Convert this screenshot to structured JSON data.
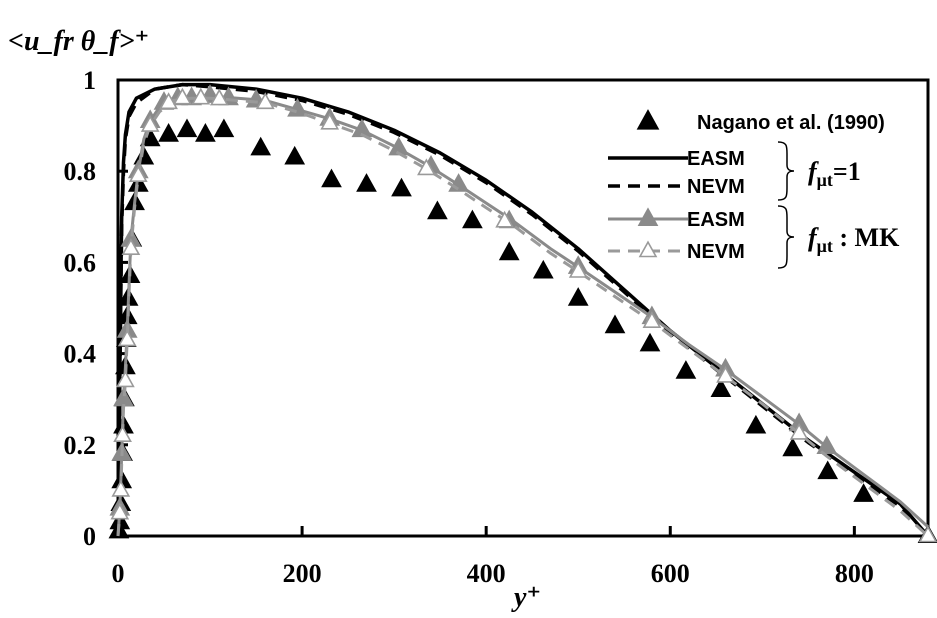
{
  "chart_data": {
    "type": "line",
    "title": "",
    "ylabel": "<u_fr θ_f>⁺",
    "xlabel": "y⁺",
    "xlim": [
      0,
      880
    ],
    "ylim": [
      0,
      1
    ],
    "grid": false,
    "legend_position": "top-right",
    "x_ticks": [
      0,
      200,
      400,
      600,
      800
    ],
    "y_ticks": [
      0,
      0.2,
      0.4,
      0.6,
      0.8,
      1
    ],
    "x_tick_labels": [
      "0",
      "200",
      "400",
      "600",
      "800"
    ],
    "y_tick_labels": [
      "0",
      "0.2",
      "0.4",
      "0.6",
      "0.8",
      "1"
    ],
    "legend_groups": [
      {
        "label_main": "f",
        "label_sub": "μt",
        "label_suffix": "=1",
        "members": [
          "EASM (fμt=1)",
          "NEVM (fμt=1)"
        ]
      },
      {
        "label_main": "f",
        "label_sub": "μt",
        "label_suffix": " : MK",
        "members": [
          "EASM (fμt: MK)",
          "NEVM (fμt: MK)"
        ]
      }
    ],
    "series": [
      {
        "name": "Nagano et al. (1990)",
        "legend_label": "Nagano et al. (1990)",
        "style": "markers",
        "marker": "filled-triangle",
        "color": "#000000",
        "points": [
          [
            1,
            0.01
          ],
          [
            2,
            0.03
          ],
          [
            3,
            0.07
          ],
          [
            4,
            0.12
          ],
          [
            5,
            0.18
          ],
          [
            6,
            0.24
          ],
          [
            7,
            0.3
          ],
          [
            8,
            0.37
          ],
          [
            9,
            0.43
          ],
          [
            10,
            0.48
          ],
          [
            11,
            0.52
          ],
          [
            13,
            0.57
          ],
          [
            15,
            0.65
          ],
          [
            18,
            0.73
          ],
          [
            22,
            0.77
          ],
          [
            28,
            0.83
          ],
          [
            35,
            0.87
          ],
          [
            55,
            0.88
          ],
          [
            75,
            0.89
          ],
          [
            95,
            0.88
          ],
          [
            115,
            0.89
          ],
          [
            155,
            0.85
          ],
          [
            192,
            0.83
          ],
          [
            232,
            0.78
          ],
          [
            270,
            0.77
          ],
          [
            308,
            0.76
          ],
          [
            347,
            0.71
          ],
          [
            385,
            0.69
          ],
          [
            425,
            0.62
          ],
          [
            462,
            0.58
          ],
          [
            500,
            0.52
          ],
          [
            540,
            0.46
          ],
          [
            578,
            0.42
          ],
          [
            617,
            0.36
          ],
          [
            655,
            0.32
          ],
          [
            693,
            0.24
          ],
          [
            733,
            0.19
          ],
          [
            771,
            0.14
          ],
          [
            810,
            0.09
          ],
          [
            880,
            0.0
          ]
        ]
      },
      {
        "name": "EASM (fμt=1)",
        "legend_label": "EASM",
        "style": "solid",
        "color": "#000000",
        "width": 3.5,
        "points": [
          [
            0,
            0
          ],
          [
            1,
            0.15
          ],
          [
            2,
            0.35
          ],
          [
            3,
            0.55
          ],
          [
            4,
            0.7
          ],
          [
            6,
            0.82
          ],
          [
            8,
            0.88
          ],
          [
            12,
            0.93
          ],
          [
            20,
            0.96
          ],
          [
            40,
            0.98
          ],
          [
            70,
            0.99
          ],
          [
            100,
            0.99
          ],
          [
            150,
            0.98
          ],
          [
            200,
            0.96
          ],
          [
            250,
            0.93
          ],
          [
            300,
            0.89
          ],
          [
            350,
            0.84
          ],
          [
            400,
            0.78
          ],
          [
            450,
            0.71
          ],
          [
            500,
            0.63
          ],
          [
            550,
            0.54
          ],
          [
            600,
            0.45
          ],
          [
            650,
            0.37
          ],
          [
            700,
            0.29
          ],
          [
            750,
            0.21
          ],
          [
            800,
            0.14
          ],
          [
            850,
            0.07
          ],
          [
            880,
            0
          ]
        ]
      },
      {
        "name": "NEVM (fμt=1)",
        "legend_label": "NEVM",
        "style": "dashed",
        "color": "#000000",
        "width": 3.5,
        "points": [
          [
            0,
            0
          ],
          [
            1,
            0.14
          ],
          [
            2,
            0.33
          ],
          [
            3,
            0.52
          ],
          [
            4,
            0.68
          ],
          [
            6,
            0.8
          ],
          [
            8,
            0.87
          ],
          [
            12,
            0.92
          ],
          [
            20,
            0.95
          ],
          [
            40,
            0.98
          ],
          [
            70,
            0.99
          ],
          [
            100,
            0.985
          ],
          [
            150,
            0.975
          ],
          [
            200,
            0.955
          ],
          [
            250,
            0.925
          ],
          [
            300,
            0.885
          ],
          [
            350,
            0.835
          ],
          [
            400,
            0.775
          ],
          [
            450,
            0.705
          ],
          [
            500,
            0.625
          ],
          [
            550,
            0.535
          ],
          [
            600,
            0.445
          ],
          [
            650,
            0.365
          ],
          [
            700,
            0.285
          ],
          [
            750,
            0.205
          ],
          [
            800,
            0.135
          ],
          [
            850,
            0.065
          ],
          [
            880,
            0
          ]
        ]
      },
      {
        "name": "EASM (fμt: MK)",
        "legend_label": "EASM",
        "style": "solid-markers",
        "marker": "filled-triangle",
        "color": "#8a8a8a",
        "width": 3,
        "points": [
          [
            0,
            0
          ],
          [
            2,
            0.06
          ],
          [
            3,
            0.12
          ],
          [
            4,
            0.18
          ],
          [
            5,
            0.24
          ],
          [
            6,
            0.3
          ],
          [
            8,
            0.37
          ],
          [
            10,
            0.45
          ],
          [
            12,
            0.55
          ],
          [
            14,
            0.65
          ],
          [
            18,
            0.73
          ],
          [
            22,
            0.8
          ],
          [
            28,
            0.87
          ],
          [
            35,
            0.91
          ],
          [
            45,
            0.94
          ],
          [
            60,
            0.96
          ],
          [
            80,
            0.96
          ],
          [
            100,
            0.965
          ],
          [
            130,
            0.96
          ],
          [
            160,
            0.955
          ],
          [
            195,
            0.935
          ],
          [
            230,
            0.915
          ],
          [
            265,
            0.89
          ],
          [
            300,
            0.855
          ],
          [
            335,
            0.815
          ],
          [
            370,
            0.77
          ],
          [
            400,
            0.73
          ],
          [
            430,
            0.69
          ],
          [
            470,
            0.63
          ],
          [
            500,
            0.59
          ],
          [
            540,
            0.535
          ],
          [
            580,
            0.48
          ],
          [
            620,
            0.42
          ],
          [
            660,
            0.365
          ],
          [
            700,
            0.305
          ],
          [
            740,
            0.245
          ],
          [
            770,
            0.195
          ],
          [
            810,
            0.135
          ],
          [
            850,
            0.075
          ],
          [
            880,
            0.02
          ]
        ],
        "marker_points": [
          [
            2,
            0.06
          ],
          [
            4,
            0.18
          ],
          [
            6,
            0.3
          ],
          [
            10,
            0.45
          ],
          [
            14,
            0.65
          ],
          [
            22,
            0.8
          ],
          [
            35,
            0.91
          ],
          [
            50,
            0.95
          ],
          [
            65,
            0.96
          ],
          [
            80,
            0.96
          ],
          [
            100,
            0.965
          ],
          [
            120,
            0.96
          ],
          [
            150,
            0.955
          ],
          [
            195,
            0.935
          ],
          [
            230,
            0.915
          ],
          [
            265,
            0.89
          ],
          [
            305,
            0.85
          ],
          [
            340,
            0.81
          ],
          [
            370,
            0.77
          ],
          [
            425,
            0.69
          ],
          [
            500,
            0.59
          ],
          [
            580,
            0.48
          ],
          [
            660,
            0.365
          ],
          [
            740,
            0.245
          ],
          [
            770,
            0.195
          ]
        ]
      },
      {
        "name": "NEVM (fμt: MK)",
        "legend_label": "NEVM",
        "style": "dashed-markers",
        "marker": "open-triangle",
        "color": "#9a9a9a",
        "width": 3,
        "points": [
          [
            0,
            0
          ],
          [
            2,
            0.05
          ],
          [
            3,
            0.1
          ],
          [
            4,
            0.16
          ],
          [
            5,
            0.22
          ],
          [
            6,
            0.28
          ],
          [
            8,
            0.34
          ],
          [
            10,
            0.43
          ],
          [
            12,
            0.53
          ],
          [
            14,
            0.63
          ],
          [
            18,
            0.72
          ],
          [
            22,
            0.79
          ],
          [
            28,
            0.86
          ],
          [
            35,
            0.9
          ],
          [
            45,
            0.93
          ],
          [
            60,
            0.955
          ],
          [
            80,
            0.96
          ],
          [
            100,
            0.96
          ],
          [
            130,
            0.955
          ],
          [
            160,
            0.95
          ],
          [
            195,
            0.93
          ],
          [
            230,
            0.905
          ],
          [
            265,
            0.88
          ],
          [
            300,
            0.845
          ],
          [
            335,
            0.805
          ],
          [
            370,
            0.76
          ],
          [
            400,
            0.72
          ],
          [
            430,
            0.68
          ],
          [
            470,
            0.62
          ],
          [
            500,
            0.58
          ],
          [
            540,
            0.525
          ],
          [
            580,
            0.47
          ],
          [
            620,
            0.41
          ],
          [
            660,
            0.35
          ],
          [
            700,
            0.29
          ],
          [
            740,
            0.225
          ],
          [
            770,
            0.175
          ],
          [
            810,
            0.115
          ],
          [
            850,
            0.055
          ],
          [
            880,
            0.0
          ]
        ],
        "marker_points": [
          [
            2,
            0.05
          ],
          [
            3,
            0.1
          ],
          [
            5,
            0.22
          ],
          [
            8,
            0.34
          ],
          [
            10,
            0.43
          ],
          [
            14,
            0.63
          ],
          [
            22,
            0.79
          ],
          [
            35,
            0.9
          ],
          [
            55,
            0.95
          ],
          [
            70,
            0.96
          ],
          [
            90,
            0.96
          ],
          [
            110,
            0.958
          ],
          [
            160,
            0.95
          ],
          [
            230,
            0.905
          ],
          [
            335,
            0.805
          ],
          [
            420,
            0.69
          ],
          [
            500,
            0.58
          ],
          [
            580,
            0.47
          ],
          [
            660,
            0.35
          ],
          [
            740,
            0.225
          ],
          [
            880,
            0.0
          ]
        ]
      }
    ]
  }
}
